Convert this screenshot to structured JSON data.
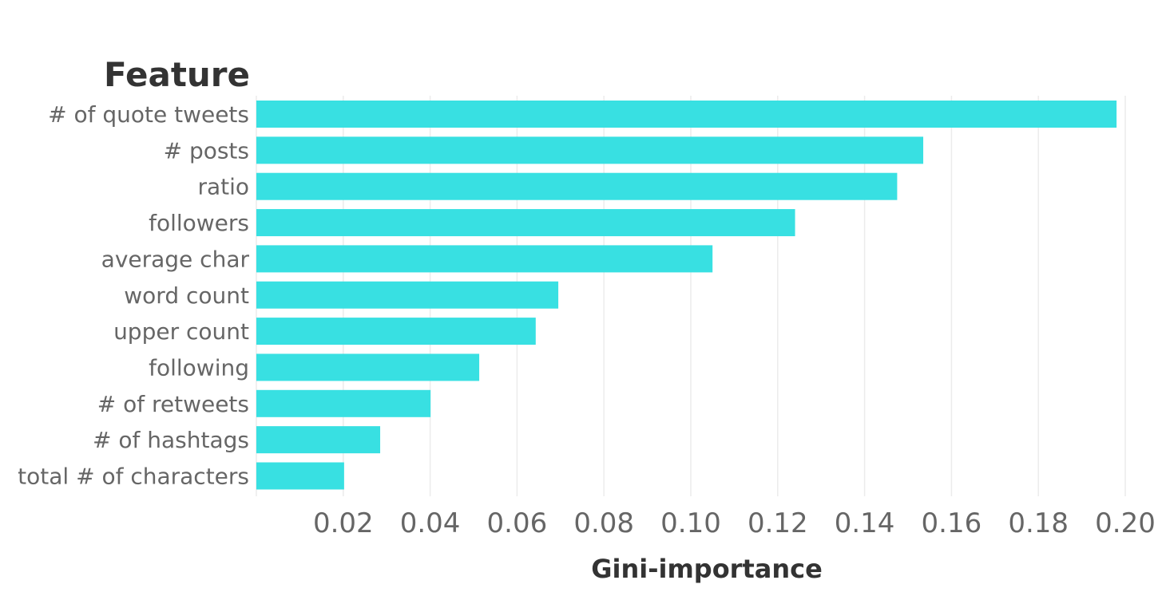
{
  "chart_data": {
    "type": "bar",
    "orientation": "horizontal",
    "row_header": "Feature",
    "xlabel": "Gini-importance",
    "ylabel": "",
    "bar_color": "#38e0e2",
    "grid": true,
    "xlim": [
      0,
      0.2
    ],
    "xticks": [
      "0.02",
      "0.04",
      "0.06",
      "0.08",
      "0.10",
      "0.12",
      "0.14",
      "0.16",
      "0.18",
      "0.20"
    ],
    "xtick_values": [
      0.02,
      0.04,
      0.06,
      0.08,
      0.1,
      0.12,
      0.14,
      0.16,
      0.18,
      0.2
    ],
    "categories": [
      "# of quote tweets",
      "# posts",
      "ratio",
      "followers",
      "average char",
      "word count",
      "upper count",
      "following",
      "# of retweets",
      "# of hashtags",
      "total # of characters"
    ],
    "values": [
      0.198,
      0.1535,
      0.1475,
      0.124,
      0.105,
      0.0695,
      0.0643,
      0.0513,
      0.0401,
      0.0285,
      0.0202
    ]
  }
}
